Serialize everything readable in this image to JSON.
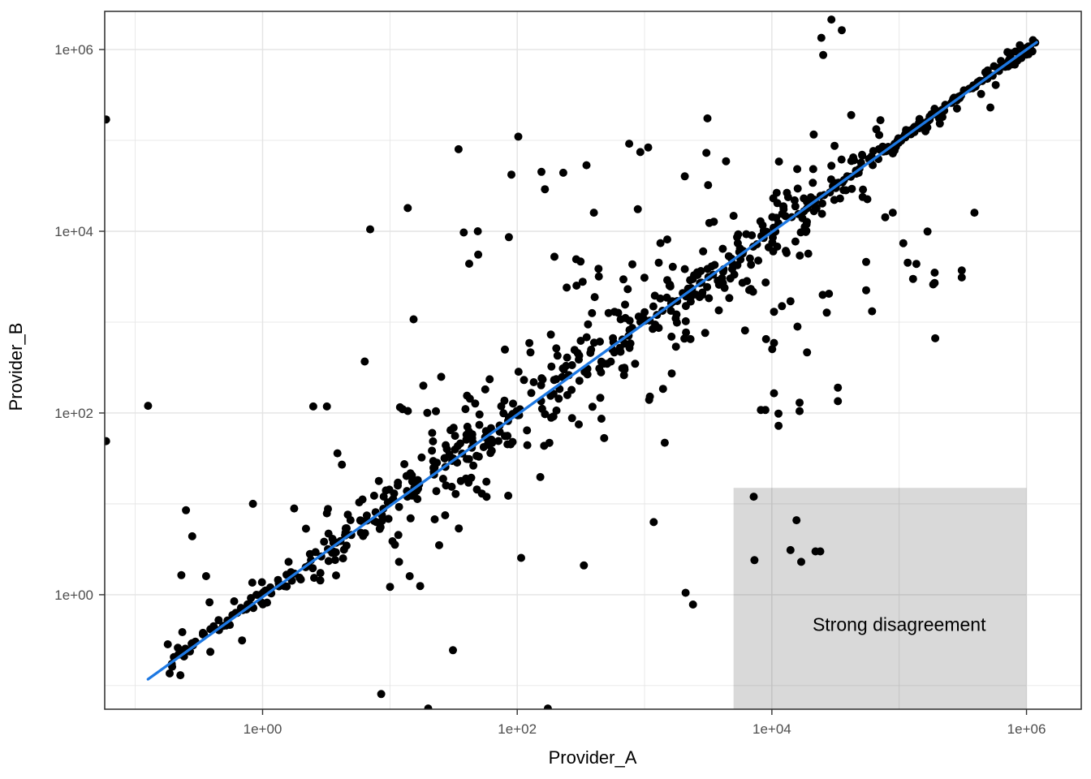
{
  "figure": {
    "background": "#ffffff"
  },
  "chart_data": {
    "type": "scatter",
    "title": "",
    "xlabel": "Provider_A",
    "ylabel": "Provider_B",
    "x_scale": "log10",
    "y_scale": "log10",
    "x_domain_log10": [
      -1.24,
      6.43
    ],
    "y_domain_log10": [
      -1.26,
      6.42
    ],
    "x_tick_values_log10": [
      0,
      2,
      4,
      6
    ],
    "x_tick_labels": [
      "1e+00",
      "1e+02",
      "1e+04",
      "1e+06"
    ],
    "y_tick_values_log10": [
      0,
      2,
      4,
      6
    ],
    "y_tick_labels": [
      "1e+00",
      "1e+02",
      "1e+04",
      "1e+06"
    ],
    "minor_grid_log10": [
      -1,
      1,
      3,
      5
    ],
    "grid": {
      "color": "#e3e3e3",
      "major_width": 1.4,
      "minor_width": 0.8,
      "panel_bg": "#ffffff",
      "border_color": "#2b2b2b",
      "tick_color": "#333333"
    },
    "axis_text_color": "#4d4d4d",
    "axis_title_color": "#000000",
    "point_style": {
      "color": "#000000",
      "radius": 5,
      "opacity": 1
    },
    "trend_line": {
      "color": "#1d78e2",
      "width": 3.3,
      "x1_log10": -0.9,
      "y1_log10": -0.93,
      "x2_log10": 6.08,
      "y2_log10": 6.08
    },
    "annotation": {
      "label": "Strong disagreement",
      "box": {
        "x_min": 5000,
        "x_max": 1000000,
        "y_min_log10": -1.26,
        "y_max": 15,
        "fill_rgba": [
          0,
          0,
          0,
          0.15
        ]
      },
      "label_x": 100000,
      "label_y": 0.47
    },
    "notable_points": [
      [
        0.059,
        49
      ],
      [
        0.059,
        170000
      ],
      [
        0.126,
        120
      ],
      [
        0.25,
        8.5
      ],
      [
        0.28,
        4.4
      ],
      [
        0.23,
        1.64
      ],
      [
        0.36,
        1.6
      ],
      [
        0.84,
        10
      ],
      [
        0.83,
        1.36
      ],
      [
        0.81,
        0.92
      ],
      [
        1.6,
        2.3
      ],
      [
        2.4,
        2.4
      ],
      [
        3.3,
        2.35
      ],
      [
        1.77,
        8.9
      ],
      [
        2.5,
        118
      ],
      [
        3.2,
        118
      ],
      [
        3.87,
        36
      ],
      [
        4.2,
        27
      ],
      [
        7.0,
        10500
      ],
      [
        13.8,
        18000
      ],
      [
        38,
        9700
      ],
      [
        49,
        10000
      ],
      [
        86,
        8600
      ],
      [
        34.6,
        80000
      ],
      [
        102,
        110000
      ],
      [
        90,
        42000
      ],
      [
        155,
        45000
      ],
      [
        230,
        44000
      ],
      [
        165,
        29000
      ],
      [
        757,
        92000
      ],
      [
        400,
        16000
      ],
      [
        42000,
        190000
      ],
      [
        89000,
        16000
      ],
      [
        11.8,
        2.3
      ],
      [
        14.3,
        1.6
      ],
      [
        334,
        2.1
      ],
      [
        20,
        0.056
      ],
      [
        174,
        0.056
      ],
      [
        2400,
        0.78
      ],
      [
        2100,
        1.05
      ],
      [
        55000,
        4600
      ],
      [
        55000,
        2240
      ],
      [
        12000,
        1500
      ],
      [
        14000,
        1700
      ],
      [
        10400,
        1300
      ],
      [
        6150,
        810
      ],
      [
        9000,
        650
      ],
      [
        10400,
        590
      ],
      [
        10400,
        165
      ],
      [
        8200,
        108
      ],
      [
        8900,
        108
      ],
      [
        16500,
        130
      ],
      [
        16500,
        105
      ],
      [
        33000,
        190
      ],
      [
        33000,
        135
      ],
      [
        27000,
        1270
      ],
      [
        190000,
        3500
      ],
      [
        190000,
        2700
      ],
      [
        185000,
        2600
      ],
      [
        310000,
        3700
      ],
      [
        310000,
        3100
      ],
      [
        390000,
        16000
      ],
      [
        520000,
        230000
      ],
      [
        7200,
        12
      ],
      [
        15600,
        6.6
      ],
      [
        14000,
        3.1
      ],
      [
        17000,
        2.3
      ],
      [
        22000,
        3.0
      ],
      [
        24000,
        3.0
      ],
      [
        7300,
        2.4
      ]
    ],
    "cloud_distribution": {
      "seed": 20240817,
      "n": 760,
      "t_min": -0.75,
      "t_max": 6.08,
      "low_t_threshold": 0.9,
      "low_t_keep": 0.5,
      "sd_base": 0.1,
      "sd_bump": 0.45,
      "sd_center": 2.4,
      "sd_width": 3.0,
      "tight_fraction": 0.42,
      "tight_scale": 0.28,
      "high_t_tight": 4.9,
      "high_t_sd": 0.06,
      "outlier_range": [
        0.8,
        4.6
      ],
      "outlier_prob": 0.1,
      "outlier_up_bias": 0.62,
      "outlier_min": 0.5,
      "outlier_span": 1.9,
      "low_right_range": [
        3.8,
        5.3
      ],
      "low_right_prob": 0.05,
      "low_right_min": 0.7,
      "low_right_span": 1.9
    }
  }
}
